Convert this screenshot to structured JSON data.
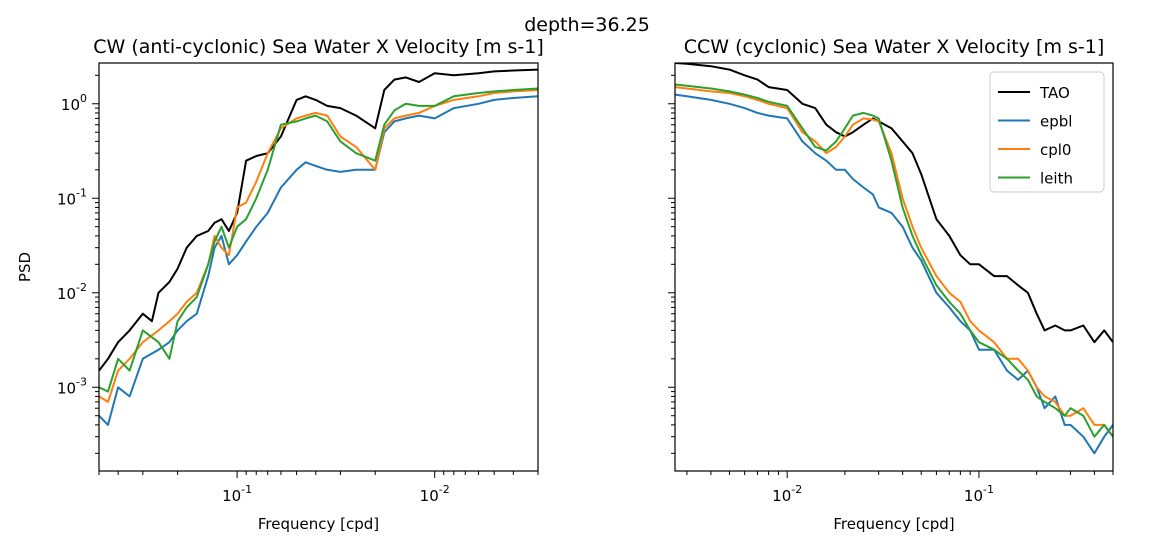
{
  "suptitle": "depth=36.25",
  "chart_data": [
    {
      "type": "line",
      "title": "CW (anti-cyclonic) Sea Water X Velocity [m s-1]",
      "xlabel": "Frequency [cpd]",
      "ylabel": "PSD",
      "xscale": "log",
      "yscale": "log",
      "x_inverted": true,
      "xlim": [
        0.5,
        0.003
      ],
      "ylim": [
        0.00013,
        2.7
      ],
      "xticks": [
        {
          "v": 0.1,
          "label": "10^{-1}"
        },
        {
          "v": 0.01,
          "label": "10^{-2}"
        }
      ],
      "yticks": [
        {
          "v": 1,
          "label": "10^{0}"
        },
        {
          "v": 0.1,
          "label": "10^{-1}"
        },
        {
          "v": 0.01,
          "label": "10^{-2}"
        },
        {
          "v": 0.001,
          "label": "10^{-3}"
        }
      ],
      "legend": "none",
      "series": [
        {
          "name": "TAO",
          "color": "#000000",
          "x": [
            0.5,
            0.45,
            0.4,
            0.35,
            0.3,
            0.27,
            0.25,
            0.22,
            0.2,
            0.18,
            0.16,
            0.14,
            0.13,
            0.12,
            0.11,
            0.1,
            0.09,
            0.08,
            0.07,
            0.06,
            0.05,
            0.045,
            0.04,
            0.035,
            0.03,
            0.025,
            0.02,
            0.018,
            0.016,
            0.014,
            0.012,
            0.01,
            0.008,
            0.006,
            0.005,
            0.004,
            0.003
          ],
          "y": [
            0.0015,
            0.002,
            0.003,
            0.004,
            0.006,
            0.005,
            0.01,
            0.013,
            0.018,
            0.03,
            0.04,
            0.045,
            0.055,
            0.06,
            0.045,
            0.07,
            0.25,
            0.28,
            0.3,
            0.45,
            1.1,
            1.2,
            1.1,
            0.95,
            0.9,
            0.75,
            0.55,
            1.4,
            1.8,
            1.9,
            1.7,
            2.1,
            2.0,
            2.1,
            2.2,
            2.25,
            2.3
          ]
        },
        {
          "name": "epbl",
          "color": "#1f77b4",
          "x": [
            0.5,
            0.45,
            0.4,
            0.35,
            0.3,
            0.25,
            0.22,
            0.2,
            0.18,
            0.16,
            0.14,
            0.13,
            0.12,
            0.11,
            0.1,
            0.09,
            0.08,
            0.07,
            0.06,
            0.05,
            0.045,
            0.04,
            0.035,
            0.03,
            0.025,
            0.02,
            0.018,
            0.016,
            0.014,
            0.012,
            0.01,
            0.008,
            0.006,
            0.005,
            0.004,
            0.003
          ],
          "y": [
            0.0005,
            0.0004,
            0.001,
            0.0008,
            0.002,
            0.0025,
            0.003,
            0.004,
            0.005,
            0.006,
            0.015,
            0.03,
            0.04,
            0.02,
            0.025,
            0.035,
            0.05,
            0.07,
            0.13,
            0.2,
            0.24,
            0.22,
            0.2,
            0.19,
            0.2,
            0.2,
            0.5,
            0.65,
            0.7,
            0.75,
            0.7,
            0.9,
            1.0,
            1.1,
            1.15,
            1.2
          ]
        },
        {
          "name": "cpl0",
          "color": "#ff7f0e",
          "x": [
            0.5,
            0.45,
            0.4,
            0.35,
            0.3,
            0.25,
            0.22,
            0.2,
            0.18,
            0.16,
            0.14,
            0.13,
            0.12,
            0.11,
            0.1,
            0.09,
            0.08,
            0.07,
            0.06,
            0.05,
            0.045,
            0.04,
            0.035,
            0.03,
            0.025,
            0.02,
            0.018,
            0.016,
            0.014,
            0.012,
            0.01,
            0.008,
            0.006,
            0.005,
            0.004,
            0.003
          ],
          "y": [
            0.0008,
            0.0007,
            0.0015,
            0.002,
            0.003,
            0.004,
            0.005,
            0.006,
            0.008,
            0.01,
            0.02,
            0.04,
            0.03,
            0.025,
            0.08,
            0.09,
            0.15,
            0.3,
            0.55,
            0.7,
            0.75,
            0.8,
            0.75,
            0.45,
            0.35,
            0.2,
            0.55,
            0.7,
            0.75,
            0.8,
            0.95,
            1.1,
            1.2,
            1.3,
            1.35,
            1.4
          ]
        },
        {
          "name": "leith",
          "color": "#2ca02c",
          "x": [
            0.5,
            0.45,
            0.4,
            0.35,
            0.3,
            0.25,
            0.22,
            0.2,
            0.18,
            0.16,
            0.14,
            0.13,
            0.12,
            0.11,
            0.1,
            0.09,
            0.08,
            0.07,
            0.06,
            0.05,
            0.045,
            0.04,
            0.035,
            0.03,
            0.025,
            0.02,
            0.018,
            0.016,
            0.014,
            0.012,
            0.01,
            0.008,
            0.006,
            0.005,
            0.004,
            0.003
          ],
          "y": [
            0.001,
            0.0009,
            0.002,
            0.0015,
            0.004,
            0.003,
            0.002,
            0.005,
            0.007,
            0.009,
            0.02,
            0.035,
            0.05,
            0.03,
            0.05,
            0.06,
            0.1,
            0.2,
            0.6,
            0.65,
            0.7,
            0.75,
            0.65,
            0.4,
            0.3,
            0.25,
            0.6,
            0.85,
            1.0,
            0.95,
            0.95,
            1.2,
            1.3,
            1.35,
            1.4,
            1.45
          ]
        }
      ]
    },
    {
      "type": "line",
      "title": "CCW (cyclonic) Sea Water X Velocity [m s-1]",
      "xlabel": "Frequency [cpd]",
      "ylabel": "",
      "xscale": "log",
      "yscale": "log",
      "xlim": [
        0.0026,
        0.5
      ],
      "ylim": [
        0.00013,
        2.7
      ],
      "xticks": [
        {
          "v": 0.01,
          "label": "10^{-2}"
        },
        {
          "v": 0.1,
          "label": "10^{-1}"
        }
      ],
      "yticks": [],
      "legend": "top-right",
      "series": [
        {
          "name": "TAO",
          "color": "#000000",
          "x": [
            0.0026,
            0.003,
            0.004,
            0.005,
            0.006,
            0.007,
            0.008,
            0.01,
            0.012,
            0.014,
            0.016,
            0.018,
            0.02,
            0.022,
            0.025,
            0.028,
            0.03,
            0.035,
            0.04,
            0.045,
            0.05,
            0.06,
            0.07,
            0.08,
            0.09,
            0.1,
            0.12,
            0.14,
            0.16,
            0.18,
            0.2,
            0.22,
            0.25,
            0.28,
            0.3,
            0.35,
            0.4,
            0.45,
            0.5
          ],
          "y": [
            2.7,
            2.65,
            2.5,
            2.3,
            2.0,
            1.8,
            1.5,
            1.4,
            1.0,
            0.9,
            0.6,
            0.5,
            0.45,
            0.5,
            0.6,
            0.7,
            0.65,
            0.55,
            0.4,
            0.3,
            0.18,
            0.06,
            0.04,
            0.025,
            0.02,
            0.02,
            0.015,
            0.015,
            0.012,
            0.01,
            0.006,
            0.004,
            0.0045,
            0.004,
            0.004,
            0.0045,
            0.003,
            0.004,
            0.003
          ]
        },
        {
          "name": "epbl",
          "color": "#1f77b4",
          "x": [
            0.0026,
            0.003,
            0.004,
            0.005,
            0.006,
            0.007,
            0.008,
            0.01,
            0.012,
            0.014,
            0.016,
            0.018,
            0.02,
            0.022,
            0.025,
            0.028,
            0.03,
            0.035,
            0.04,
            0.045,
            0.05,
            0.06,
            0.07,
            0.08,
            0.09,
            0.1,
            0.12,
            0.14,
            0.16,
            0.18,
            0.2,
            0.22,
            0.25,
            0.28,
            0.3,
            0.35,
            0.4,
            0.45,
            0.5
          ],
          "y": [
            1.25,
            1.2,
            1.1,
            1.0,
            0.9,
            0.8,
            0.75,
            0.7,
            0.4,
            0.3,
            0.25,
            0.2,
            0.2,
            0.16,
            0.13,
            0.11,
            0.08,
            0.07,
            0.05,
            0.03,
            0.022,
            0.01,
            0.007,
            0.005,
            0.004,
            0.0025,
            0.0025,
            0.0015,
            0.0012,
            0.0015,
            0.001,
            0.0006,
            0.0008,
            0.0004,
            0.0004,
            0.0003,
            0.0002,
            0.0003,
            0.0004
          ]
        },
        {
          "name": "cpl0",
          "color": "#ff7f0e",
          "x": [
            0.0026,
            0.003,
            0.004,
            0.005,
            0.006,
            0.007,
            0.008,
            0.01,
            0.012,
            0.014,
            0.016,
            0.018,
            0.02,
            0.022,
            0.025,
            0.028,
            0.03,
            0.035,
            0.04,
            0.045,
            0.05,
            0.06,
            0.07,
            0.08,
            0.09,
            0.1,
            0.12,
            0.14,
            0.16,
            0.18,
            0.2,
            0.22,
            0.25,
            0.28,
            0.3,
            0.35,
            0.4,
            0.45,
            0.5
          ],
          "y": [
            1.5,
            1.45,
            1.35,
            1.3,
            1.2,
            1.1,
            1.0,
            0.9,
            0.5,
            0.4,
            0.3,
            0.35,
            0.45,
            0.6,
            0.7,
            0.68,
            0.65,
            0.3,
            0.1,
            0.05,
            0.03,
            0.015,
            0.01,
            0.008,
            0.005,
            0.004,
            0.003,
            0.002,
            0.002,
            0.0015,
            0.001,
            0.0008,
            0.0007,
            0.0005,
            0.0005,
            0.0006,
            0.0004,
            0.0004,
            0.0003
          ]
        },
        {
          "name": "leith",
          "color": "#2ca02c",
          "x": [
            0.0026,
            0.003,
            0.004,
            0.005,
            0.006,
            0.007,
            0.008,
            0.01,
            0.012,
            0.014,
            0.016,
            0.018,
            0.02,
            0.022,
            0.025,
            0.028,
            0.03,
            0.035,
            0.04,
            0.045,
            0.05,
            0.06,
            0.07,
            0.08,
            0.09,
            0.1,
            0.12,
            0.14,
            0.16,
            0.18,
            0.2,
            0.22,
            0.25,
            0.28,
            0.3,
            0.35,
            0.4,
            0.45,
            0.5
          ],
          "y": [
            1.6,
            1.55,
            1.45,
            1.35,
            1.25,
            1.15,
            1.05,
            0.95,
            0.55,
            0.35,
            0.32,
            0.4,
            0.55,
            0.75,
            0.8,
            0.75,
            0.7,
            0.25,
            0.08,
            0.04,
            0.025,
            0.012,
            0.008,
            0.006,
            0.004,
            0.003,
            0.0025,
            0.002,
            0.0015,
            0.0012,
            0.0008,
            0.0007,
            0.0006,
            0.0005,
            0.0006,
            0.0005,
            0.0003,
            0.0004,
            0.0003
          ]
        }
      ]
    }
  ]
}
